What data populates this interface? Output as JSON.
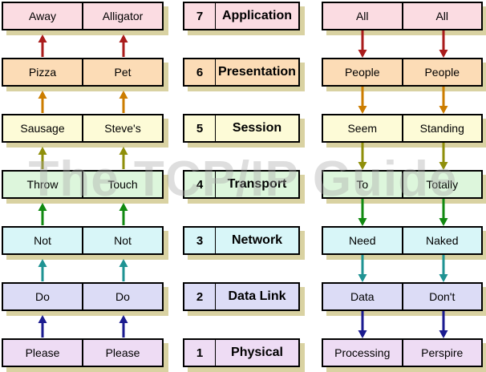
{
  "watermark": "The TCP/IP Guide",
  "colors": {
    "background": "#ffffff",
    "box_border": "#000000",
    "box_shadow": "#d9d2a2",
    "text": "#000000",
    "watermark_gray": "#a8a8a8"
  },
  "layers": [
    {
      "number": "7",
      "name": "Application",
      "fill": "#fbdce2",
      "left": [
        "Away",
        "Alligator"
      ],
      "right": [
        "All",
        "All"
      ]
    },
    {
      "number": "6",
      "name": "Presentation",
      "fill": "#fcdcb6",
      "left": [
        "Pizza",
        "Pet"
      ],
      "right": [
        "People",
        "People"
      ]
    },
    {
      "number": "5",
      "name": "Session",
      "fill": "#fdfbd7",
      "left": [
        "Sausage",
        "Steve's"
      ],
      "right": [
        "Seem",
        "Standing"
      ]
    },
    {
      "number": "4",
      "name": "Transport",
      "fill": "#ddf6dc",
      "left": [
        "Throw",
        "Touch"
      ],
      "right": [
        "To",
        "Totally"
      ]
    },
    {
      "number": "3",
      "name": "Network",
      "fill": "#d8f6f8",
      "left": [
        "Not",
        "Not"
      ],
      "right": [
        "Need",
        "Naked"
      ]
    },
    {
      "number": "2",
      "name": "Data Link",
      "fill": "#dcdcf6",
      "left": [
        "Do",
        "Do"
      ],
      "right": [
        "Data",
        "Don't"
      ]
    },
    {
      "number": "1",
      "name": "Physical",
      "fill": "#eedcf4",
      "left": [
        "Please",
        "Please"
      ],
      "right": [
        "Processing",
        "Perspire"
      ]
    }
  ],
  "arrows": {
    "left_direction": "up",
    "right_direction": "down",
    "gap_colors": [
      "#aa1c1c",
      "#cc7d00",
      "#8f8f0a",
      "#118a11",
      "#1f9393",
      "#1b1b90"
    ]
  }
}
